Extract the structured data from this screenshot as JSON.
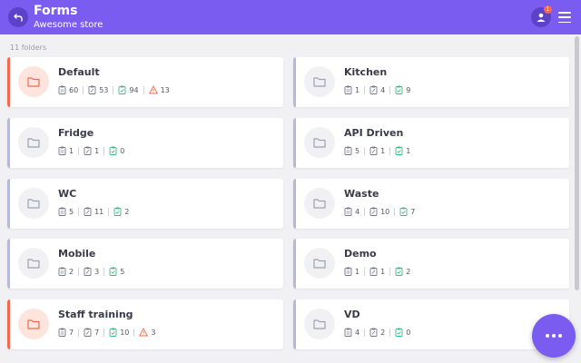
{
  "header": {
    "title": "Forms",
    "subtitle": "Awesome store",
    "notification_count": "1",
    "accent_color": "#7b5cf0",
    "icons": {
      "back": "back-arrow-icon",
      "avatar": "user-avatar-icon",
      "menu": "hamburger-menu-icon"
    }
  },
  "folder_count": "11 folders",
  "fab_icon": "more-dots-icon",
  "folders": [
    {
      "name": "Default",
      "alert": true,
      "stats": {
        "forms": "60",
        "copies": "53",
        "completed": "94",
        "issues": "13"
      }
    },
    {
      "name": "Kitchen",
      "alert": false,
      "stats": {
        "forms": "1",
        "copies": "4",
        "completed": "9"
      }
    },
    {
      "name": "Fridge",
      "alert": false,
      "stats": {
        "forms": "1",
        "copies": "1",
        "completed": "0"
      }
    },
    {
      "name": "API Driven",
      "alert": false,
      "stats": {
        "forms": "5",
        "copies": "1",
        "completed": "1"
      }
    },
    {
      "name": "WC",
      "alert": false,
      "stats": {
        "forms": "5",
        "copies": "11",
        "completed": "2"
      }
    },
    {
      "name": "Waste",
      "alert": false,
      "stats": {
        "forms": "4",
        "copies": "10",
        "completed": "7"
      }
    },
    {
      "name": "Mobile",
      "alert": false,
      "stats": {
        "forms": "2",
        "copies": "3",
        "completed": "5"
      }
    },
    {
      "name": "Demo",
      "alert": false,
      "stats": {
        "forms": "1",
        "copies": "1",
        "completed": "2"
      }
    },
    {
      "name": "Staff training",
      "alert": true,
      "stats": {
        "forms": "7",
        "copies": "7",
        "completed": "10",
        "issues": "3"
      }
    },
    {
      "name": "VD",
      "alert": false,
      "stats": {
        "forms": "4",
        "copies": "2",
        "completed": "0"
      }
    }
  ]
}
